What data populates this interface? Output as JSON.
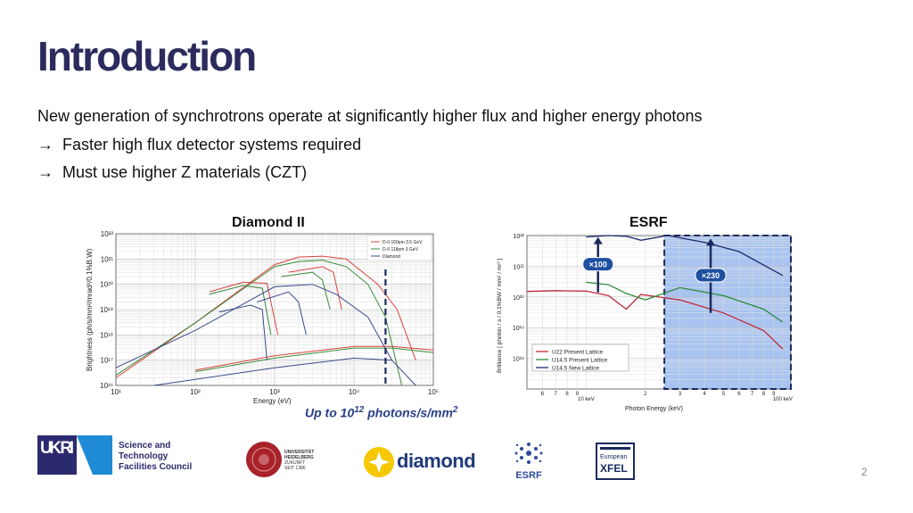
{
  "slide": {
    "title": "Introduction",
    "line1": "New generation of synchrotrons operate at significantly higher flux and higher energy photons",
    "arrow": "→",
    "line2": "Faster high flux detector systems required",
    "line3": "Must use higher Z materials (CZT)",
    "caption_prefix": "Up to ",
    "caption_base": "10",
    "caption_exp": "12",
    "caption_suffix": " photons/s/mm",
    "caption_sq": "2",
    "page_number": "2"
  },
  "logos": {
    "ukri_text": "UK RI",
    "stfc_line1": "Science and",
    "stfc_line2": "Technology",
    "stfc_line3": "Facilities Council",
    "heidelberg_line1": "UNIVERSITÄT",
    "heidelberg_line2": "HEIDELBERG",
    "heidelberg_line3": "ZUKUNFT",
    "heidelberg_line4": "SEIT 1386",
    "diamond": "diamond",
    "esrf": "ESRF",
    "xfel_line1": "European",
    "xfel_line2": "XFEL"
  },
  "chart_data": [
    {
      "type": "line",
      "title": "Diamond II",
      "xlabel": "Energy (eV)",
      "ylabel": "Brightness (ph/s/mm²/mrad²/0.1%B.W)",
      "xscale": "log",
      "yscale": "log",
      "xlim": [
        10,
        100000
      ],
      "ylim": [
        1e+16,
        1e+22
      ],
      "xticks": [
        "10¹",
        "10²",
        "10³",
        "10⁴",
        "10⁵"
      ],
      "yticks": [
        "10¹⁶",
        "10¹⁷",
        "10¹⁸",
        "10¹⁹",
        "10²⁰",
        "10²¹",
        "10²²"
      ],
      "grid": true,
      "legend_position": "top-right",
      "marker_energy": 25000,
      "series": [
        {
          "name": "D-II 160pm 3.5 GeV",
          "color": "#d9423a",
          "curves": [
            [
              [
                10,
                2e+16
              ],
              [
                100,
                3e+18
              ],
              [
                1000,
                6e+20
              ],
              [
                2000,
                1.2e+21
              ],
              [
                4000,
                1.3e+21
              ],
              [
                8000,
                1e+21
              ],
              [
                20000,
                1e+20
              ],
              [
                35000,
                1e+19
              ],
              [
                60000,
                1e+17
              ]
            ],
            [
              [
                150,
                5e+19
              ],
              [
                400,
                1.2e+20
              ],
              [
                800,
                1.1e+20
              ],
              [
                1100,
                1e+18
              ]
            ],
            [
              [
                1500,
                3e+20
              ],
              [
                4000,
                5e+20
              ],
              [
                5500,
                3e+20
              ],
              [
                7000,
                1e+19
              ]
            ],
            [
              [
                100,
                4e+16
              ],
              [
                1000,
                1.5e+17
              ],
              [
                10000,
                3.5e+17
              ],
              [
                30000,
                3.5e+17
              ],
              [
                100000,
                2.5e+17
              ]
            ]
          ]
        },
        {
          "name": "D-II 118pm 3 GeV",
          "color": "#3a8a3a",
          "curves": [
            [
              [
                10,
                2.5e+16
              ],
              [
                100,
                3e+18
              ],
              [
                1000,
                5e+20
              ],
              [
                2000,
                8e+20
              ],
              [
                4000,
                9e+20
              ],
              [
                8000,
                5e+20
              ],
              [
                15000,
                1e+20
              ],
              [
                25000,
                5e+18
              ],
              [
                40000,
                1e+16
              ]
            ],
            [
              [
                150,
                4e+19
              ],
              [
                400,
                9e+19
              ],
              [
                700,
                7e+19
              ],
              [
                900,
                1e+18
              ]
            ],
            [
              [
                1200,
                2e+20
              ],
              [
                3000,
                3e+20
              ],
              [
                4000,
                1.5e+20
              ],
              [
                5000,
                1e+19
              ]
            ],
            [
              [
                100,
                3.5e+16
              ],
              [
                1000,
                1.2e+17
              ],
              [
                10000,
                3e+17
              ],
              [
                30000,
                3e+17
              ],
              [
                100000,
                2e+17
              ]
            ]
          ]
        },
        {
          "name": "Diamond",
          "color": "#3d4a8a",
          "curves": [
            [
              [
                10,
                5e+16
              ],
              [
                100,
                1.5e+18
              ],
              [
                1000,
                8e+19
              ],
              [
                3000,
                1e+20
              ],
              [
                6000,
                4e+19
              ],
              [
                15000,
                5e+18
              ],
              [
                30000,
                1e+17
              ]
            ],
            [
              [
                200,
                8e+18
              ],
              [
                500,
                1.5e+19
              ],
              [
                700,
                1e+19
              ],
              [
                800,
                1e+17
              ]
            ],
            [
              [
                600,
                2e+19
              ],
              [
                1500,
                5e+19
              ],
              [
                2000,
                2e+19
              ],
              [
                2500,
                1e+18
              ]
            ],
            [
              [
                30,
                1e+16
              ],
              [
                1000,
                5e+16
              ],
              [
                10000,
                1.2e+17
              ],
              [
                30000,
                1e+17
              ],
              [
                60000,
                1e+16
              ]
            ]
          ]
        }
      ]
    },
    {
      "type": "line",
      "title": "ESRF",
      "xlabel": "Photon Energy (keV)",
      "ylabel": "Brilliance [ photon / s / 0.1%BW / mm² / mr² ]",
      "xscale": "log",
      "yscale": "log",
      "xlim": [
        5,
        110
      ],
      "ylim": [
        1e+17,
        1e+22
      ],
      "yticks": [
        "10¹⁸",
        "10¹⁹",
        "10²⁰",
        "10²¹",
        "10²²"
      ],
      "xtick_labels": [
        "6",
        "7",
        "8",
        "9",
        "10 keV",
        "2",
        "3",
        "4",
        "5",
        "6",
        "7",
        "8",
        "9",
        "100 keV"
      ],
      "grid": true,
      "highlight_range_keV": [
        25,
        110
      ],
      "legend_position": "bottom-left",
      "annotations": [
        "×100",
        "×230"
      ],
      "series": [
        {
          "name": "U22 Present Lattice",
          "color": "#c0283a",
          "points": [
            [
              5,
              1.5e+20
            ],
            [
              7,
              1.6e+20
            ],
            [
              10,
              1.55e+20
            ],
            [
              13,
              1.1e+20
            ],
            [
              16,
              4e+19
            ],
            [
              19,
              1.2e+20
            ],
            [
              30,
              8e+19
            ],
            [
              50,
              3e+19
            ],
            [
              80,
              8e+18
            ],
            [
              100,
              2e+18
            ]
          ]
        },
        {
          "name": "U14.5 Present Lattice",
          "color": "#2a8a3a",
          "points": [
            [
              10,
              3e+20
            ],
            [
              13,
              2.5e+20
            ],
            [
              16,
              1.3e+20
            ],
            [
              20,
              8e+19
            ],
            [
              30,
              2e+20
            ],
            [
              50,
              1.1e+20
            ],
            [
              80,
              4e+19
            ],
            [
              100,
              1.5e+19
            ]
          ]
        },
        {
          "name": "U14.5 New Lattice",
          "color": "#1e2a6e",
          "points": [
            [
              10,
              9e+21
            ],
            [
              13,
              1e+22
            ],
            [
              16,
              9.5e+21
            ],
            [
              19,
              7e+21
            ],
            [
              26,
              1e+22
            ],
            [
              40,
              6e+21
            ],
            [
              60,
              3e+21
            ],
            [
              100,
              5e+20
            ]
          ]
        }
      ]
    }
  ]
}
